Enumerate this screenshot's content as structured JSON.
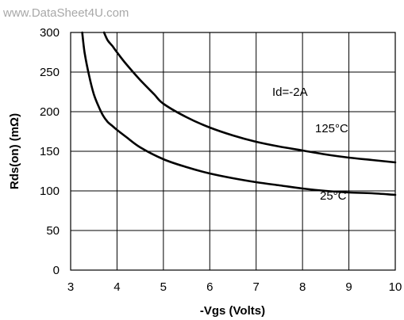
{
  "watermark": "www.DataSheet4U.com",
  "chart_data": {
    "type": "line",
    "title": "",
    "xlabel": "-Vgs (Volts)",
    "ylabel": "Rds(on) (mΩ)",
    "xlim": [
      3,
      10
    ],
    "ylim": [
      0,
      300
    ],
    "x_ticks": [
      3,
      4,
      5,
      6,
      7,
      8,
      9,
      10
    ],
    "y_ticks": [
      0,
      50,
      100,
      150,
      200,
      250,
      300
    ],
    "grid": true,
    "annotations": [
      "Id=-2A"
    ],
    "series": [
      {
        "name": "125°C",
        "x": [
          3.72,
          3.8,
          3.9,
          4.0,
          4.2,
          4.5,
          4.8,
          5.0,
          5.5,
          6.0,
          6.5,
          7.0,
          7.5,
          8.0,
          8.5,
          9.0,
          9.5,
          10.0
        ],
        "y": [
          300,
          290,
          283,
          275,
          260,
          240,
          222,
          210,
          193,
          180,
          170,
          162,
          156,
          151,
          146,
          142,
          139,
          136
        ]
      },
      {
        "name": "25°C",
        "x": [
          3.25,
          3.3,
          3.4,
          3.5,
          3.6,
          3.7,
          3.8,
          3.9,
          4.0,
          4.2,
          4.5,
          5.0,
          5.5,
          6.0,
          6.5,
          7.0,
          7.5,
          8.0,
          8.5,
          9.0,
          9.5,
          10.0
        ],
        "y": [
          300,
          275,
          245,
          222,
          207,
          195,
          187,
          182,
          177,
          168,
          155,
          140,
          130,
          122,
          116,
          111,
          107,
          103,
          100,
          98,
          97,
          95
        ]
      }
    ]
  }
}
